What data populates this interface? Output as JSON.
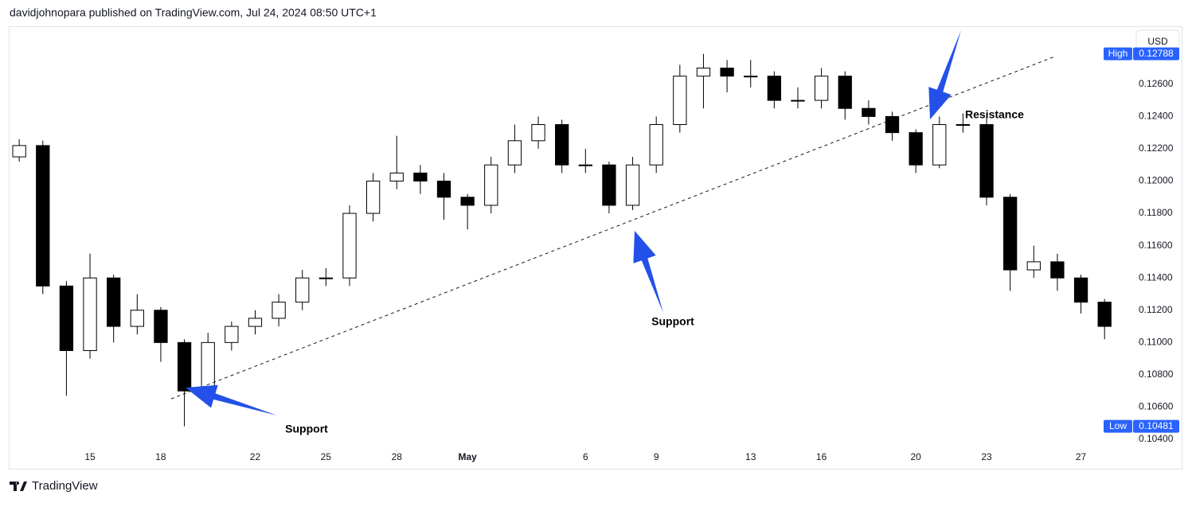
{
  "header": {
    "text": "davidjohnopara published on TradingView.com, Jul 24, 2024 08:50 UTC+1"
  },
  "footer": {
    "logo": "TradingView"
  },
  "currency_button": "USD",
  "chart_data": {
    "type": "candlestick",
    "x": [
      12,
      13,
      14,
      15,
      16,
      17,
      18,
      19,
      20,
      21,
      22,
      23,
      24,
      25,
      26,
      27,
      28,
      29,
      30,
      31,
      32,
      33,
      34,
      35,
      36,
      37,
      38,
      39,
      40,
      41,
      42,
      43,
      44,
      45,
      46,
      47,
      48,
      49,
      50,
      51,
      52,
      53,
      54,
      55,
      56,
      57,
      58
    ],
    "open": [
      0.1215,
      0.1222,
      0.1135,
      0.1095,
      0.114,
      0.111,
      0.112,
      0.11,
      0.107,
      0.11,
      0.111,
      0.1115,
      0.1125,
      0.114,
      0.114,
      0.118,
      0.12,
      0.1205,
      0.12,
      0.119,
      0.1185,
      0.121,
      0.1225,
      0.1235,
      0.121,
      0.121,
      0.1185,
      0.121,
      0.1235,
      0.1265,
      0.127,
      0.1265,
      0.1265,
      0.125,
      0.125,
      0.1265,
      0.1245,
      0.124,
      0.123,
      0.121,
      0.1235,
      0.1235,
      0.119,
      0.1145,
      0.115,
      0.114,
      0.1125
    ],
    "high": [
      0.1226,
      0.1225,
      0.1138,
      0.1155,
      0.1142,
      0.113,
      0.1122,
      0.1102,
      0.1106,
      0.1113,
      0.112,
      0.113,
      0.1145,
      0.1146,
      0.1185,
      0.1205,
      0.1228,
      0.121,
      0.1205,
      0.1192,
      0.1215,
      0.1235,
      0.124,
      0.1238,
      0.122,
      0.1212,
      0.1215,
      0.124,
      0.1272,
      0.12788,
      0.1275,
      0.1275,
      0.1268,
      0.1258,
      0.127,
      0.1268,
      0.125,
      0.1243,
      0.1232,
      0.124,
      0.1242,
      0.124,
      0.1192,
      0.116,
      0.1155,
      0.1142,
      0.1127
    ],
    "low": [
      0.1212,
      0.113,
      0.1067,
      0.109,
      0.11,
      0.1105,
      0.1088,
      0.10481,
      0.1065,
      0.1095,
      0.1105,
      0.111,
      0.112,
      0.1135,
      0.1135,
      0.1175,
      0.1195,
      0.1192,
      0.1176,
      0.117,
      0.118,
      0.1205,
      0.122,
      0.1205,
      0.1205,
      0.118,
      0.1182,
      0.1205,
      0.123,
      0.1245,
      0.1255,
      0.1258,
      0.1245,
      0.1245,
      0.1245,
      0.1238,
      0.1235,
      0.1225,
      0.1205,
      0.1208,
      0.123,
      0.1185,
      0.1132,
      0.114,
      0.1132,
      0.1118,
      0.1102
    ],
    "close": [
      0.1222,
      0.1135,
      0.1095,
      0.114,
      0.111,
      0.112,
      0.11,
      0.107,
      0.11,
      0.111,
      0.1115,
      0.1125,
      0.114,
      0.114,
      0.118,
      0.12,
      0.1205,
      0.12,
      0.119,
      0.1185,
      0.121,
      0.1225,
      0.1235,
      0.121,
      0.121,
      0.1185,
      0.121,
      0.1235,
      0.1265,
      0.127,
      0.1265,
      0.1265,
      0.125,
      0.125,
      0.1265,
      0.1245,
      0.124,
      0.123,
      0.121,
      0.1235,
      0.1235,
      0.119,
      0.1145,
      0.115,
      0.114,
      0.1125,
      0.111
    ],
    "up_color": "#ffffff",
    "down_color": "#000000",
    "wick_color": "#000000",
    "xlim": [
      11.59,
      59.31
    ],
    "xticks": [
      15,
      18,
      22,
      25,
      28,
      {
        "value": 31,
        "label": "May"
      },
      {
        "value": 36,
        "label": "6"
      },
      {
        "value": 39,
        "label": "9"
      },
      {
        "value": 43,
        "label": "13"
      },
      {
        "value": 46,
        "label": "16"
      },
      {
        "value": 50,
        "label": "20"
      },
      {
        "value": 53,
        "label": "23"
      },
      {
        "value": 57,
        "label": "27"
      }
    ],
    "ylim": [
      0.10346,
      0.12954
    ],
    "yticks": [
      {
        "value": 0.104,
        "label": "0.10400"
      },
      {
        "value": 0.106,
        "label": "0.10600"
      },
      {
        "value": 0.108,
        "label": "0.10800"
      },
      {
        "value": 0.11,
        "label": "0.11000"
      },
      {
        "value": 0.112,
        "label": "0.11200"
      },
      {
        "value": 0.114,
        "label": "0.11400"
      },
      {
        "value": 0.116,
        "label": "0.11600"
      },
      {
        "value": 0.118,
        "label": "0.11800"
      },
      {
        "value": 0.12,
        "label": "0.12000"
      },
      {
        "value": 0.122,
        "label": "0.12200"
      },
      {
        "value": 0.124,
        "label": "0.12400"
      },
      {
        "value": 0.126,
        "label": "0.12600"
      }
    ],
    "price_labels": [
      {
        "label": "High",
        "value": 0.12788
      },
      {
        "label": "Low",
        "value": 0.10481
      }
    ],
    "trendline": {
      "x": [
        18.44,
        55.9
      ],
      "y": [
        0.10651,
        0.12772
      ]
    },
    "annotations": [
      "Support",
      "Support",
      "Resistance"
    ]
  }
}
